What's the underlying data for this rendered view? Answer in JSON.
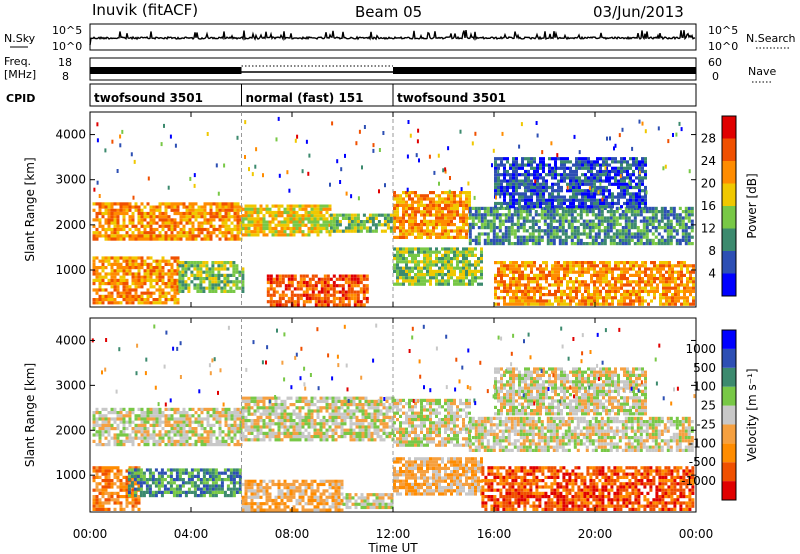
{
  "header": {
    "station": "Inuvik (fitACF)",
    "beam": "Beam 05",
    "date": "03/Jun/2013"
  },
  "status": {
    "nsky_label": "N.Sky",
    "nsky_ticks": [
      "10^5",
      "10^0"
    ],
    "nsearch_label": "N.Search",
    "freq_label_1": "Freq.",
    "freq_label_2": "[MHz]",
    "freq_ticks": [
      "18",
      "8"
    ],
    "nave_label": "Nave",
    "nave_ticks": [
      "60",
      "0"
    ],
    "cpid_label": "CPID",
    "cpid_segments": [
      {
        "name": "twofsound 3501",
        "start_hour": 0,
        "end_hour": 6
      },
      {
        "name": "normal (fast) 151",
        "start_hour": 6,
        "end_hour": 12
      },
      {
        "name": "twofsound 3501",
        "start_hour": 12,
        "end_hour": 24
      }
    ]
  },
  "chart_data": [
    {
      "type": "heatmap",
      "title": "",
      "xlabel": "Time UT",
      "ylabel": "Slant Range [km]",
      "xlim_hours": [
        0,
        24
      ],
      "ylim": [
        180,
        4500
      ],
      "x_ticks": [
        "00:00",
        "04:00",
        "08:00",
        "12:00",
        "16:00",
        "20:00",
        "00:00"
      ],
      "y_ticks": [
        1000,
        2000,
        3000,
        4000
      ],
      "colorbar": {
        "label": "Power [dB]",
        "ticks": [
          "28",
          "24",
          "20",
          "16",
          "12",
          "8",
          "4"
        ],
        "colors": [
          "#0000ff",
          "#2d4fb4",
          "#3c8a6e",
          "#78c846",
          "#f0c800",
          "#ff8c00",
          "#f05000",
          "#e00000"
        ]
      },
      "bands": [
        {
          "t0": 0.1,
          "t1": 6.0,
          "r0": 1700,
          "r1": 2500,
          "level": 5
        },
        {
          "t0": 6.0,
          "t1": 9.5,
          "r0": 1750,
          "r1": 2450,
          "level": 4
        },
        {
          "t0": 9.5,
          "t1": 12.0,
          "r0": 1850,
          "r1": 2250,
          "level": 3
        },
        {
          "t0": 12.0,
          "t1": 15.0,
          "r0": 1700,
          "r1": 2750,
          "level": 5
        },
        {
          "t0": 15.0,
          "t1": 23.9,
          "r0": 1550,
          "r1": 2400,
          "level": 2
        },
        {
          "t0": 0.1,
          "t1": 3.5,
          "r0": 250,
          "r1": 1300,
          "level": 5
        },
        {
          "t0": 3.5,
          "t1": 6.0,
          "r0": 500,
          "r1": 1200,
          "level": 3
        },
        {
          "t0": 7.0,
          "t1": 11.0,
          "r0": 250,
          "r1": 900,
          "level": 6
        },
        {
          "t0": 12.0,
          "t1": 15.5,
          "r0": 700,
          "r1": 1500,
          "level": 3
        },
        {
          "t0": 16.0,
          "t1": 23.9,
          "r0": 250,
          "r1": 1200,
          "level": 5
        },
        {
          "t0": 16.0,
          "t1": 22.0,
          "r0": 2400,
          "r1": 3500,
          "level": 1
        }
      ]
    },
    {
      "type": "heatmap",
      "title": "",
      "xlabel": "Time UT",
      "ylabel": "Slant Range [km]",
      "xlim_hours": [
        0,
        24
      ],
      "ylim": [
        180,
        4500
      ],
      "x_ticks": [
        "00:00",
        "04:00",
        "08:00",
        "12:00",
        "16:00",
        "20:00",
        "00:00"
      ],
      "y_ticks": [
        1000,
        2000,
        3000,
        4000
      ],
      "colorbar": {
        "label": "Velocity [m s⁻¹]",
        "ticks": [
          "1000",
          "500",
          "100",
          "25",
          "-25",
          "-100",
          "-500",
          "-1000"
        ],
        "colors": [
          "#e00000",
          "#f05000",
          "#ff8c00",
          "#f5a040",
          "#c8c8c8",
          "#78c846",
          "#3c8a6e",
          "#2d4fb4",
          "#0000ff"
        ]
      },
      "bands": [
        {
          "t0": 0.1,
          "t1": 6.0,
          "r0": 1700,
          "r1": 2500,
          "level": 4
        },
        {
          "t0": 6.0,
          "t1": 12.0,
          "r0": 1800,
          "r1": 2750,
          "level": 4
        },
        {
          "t0": 12.0,
          "t1": 15.0,
          "r0": 1700,
          "r1": 2700,
          "level": 4
        },
        {
          "t0": 15.0,
          "t1": 23.9,
          "r0": 1550,
          "r1": 2300,
          "level": 4
        },
        {
          "t0": 0.1,
          "t1": 2.0,
          "r0": 250,
          "r1": 1200,
          "level": 2
        },
        {
          "t0": 1.5,
          "t1": 6.0,
          "r0": 550,
          "r1": 1150,
          "level": 6
        },
        {
          "t0": 6.0,
          "t1": 10.0,
          "r0": 250,
          "r1": 900,
          "level": 3
        },
        {
          "t0": 10.0,
          "t1": 12.0,
          "r0": 250,
          "r1": 600,
          "level": 4
        },
        {
          "t0": 12.0,
          "t1": 15.5,
          "r0": 600,
          "r1": 1400,
          "level": 3
        },
        {
          "t0": 15.5,
          "t1": 23.9,
          "r0": 250,
          "r1": 1200,
          "level": 1
        },
        {
          "t0": 16.0,
          "t1": 22.0,
          "r0": 2400,
          "r1": 3400,
          "level": 4
        }
      ]
    }
  ]
}
